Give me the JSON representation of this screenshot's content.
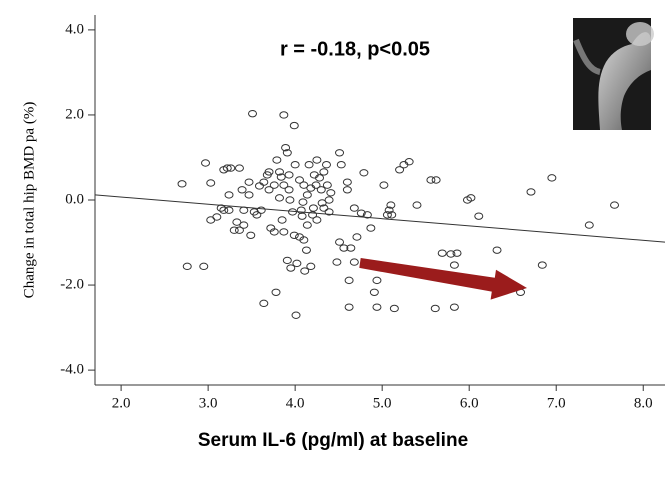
{
  "chart_data": {
    "type": "scatter",
    "annotation": "r = -0.18, p<0.05",
    "x_label": "Serum IL-6 (pg/ml) at baseline",
    "y_label": "Change in total hip BMD pa (%)",
    "xlim": [
      1.7,
      8.25
    ],
    "ylim": [
      -4.35,
      4.35
    ],
    "xticks": [
      {
        "value": 2,
        "label": "2.0"
      },
      {
        "value": 3,
        "label": "3.0"
      },
      {
        "value": 4,
        "label": "4.0"
      },
      {
        "value": 5,
        "label": "5.0"
      },
      {
        "value": 6,
        "label": "6.0"
      },
      {
        "value": 7,
        "label": "7.0"
      },
      {
        "value": 8,
        "label": "8.0"
      }
    ],
    "yticks": [
      {
        "value": 4,
        "label": "4.0"
      },
      {
        "value": 2,
        "label": "2.0"
      },
      {
        "value": 0,
        "label": "0.0"
      },
      {
        "value": -2,
        "label": "-2.0"
      },
      {
        "value": -4,
        "label": "-4.0"
      }
    ],
    "color": "#333333",
    "x": [
      2.7,
      2.76,
      2.95,
      2.97,
      3.03,
      3.03,
      3.1,
      3.15,
      3.18,
      3.18,
      3.22,
      3.24,
      3.24,
      3.26,
      3.3,
      3.33,
      3.36,
      3.36,
      3.39,
      3.41,
      3.41,
      3.47,
      3.47,
      3.49,
      3.51,
      3.53,
      3.56,
      3.59,
      3.61,
      3.64,
      3.64,
      3.68,
      3.7,
      3.7,
      3.72,
      3.76,
      3.76,
      3.78,
      3.79,
      3.82,
      3.82,
      3.84,
      3.85,
      3.87,
      3.87,
      3.87,
      3.89,
      3.91,
      3.91,
      3.93,
      3.93,
      3.94,
      3.95,
      3.97,
      3.99,
      3.99,
      4.0,
      4.01,
      4.02,
      4.05,
      4.05,
      4.07,
      4.08,
      4.09,
      4.1,
      4.1,
      4.11,
      4.13,
      4.14,
      4.14,
      4.16,
      4.18,
      4.18,
      4.2,
      4.21,
      4.22,
      4.24,
      4.25,
      4.25,
      4.28,
      4.3,
      4.31,
      4.33,
      4.33,
      4.36,
      4.37,
      4.39,
      4.39,
      4.41,
      4.48,
      4.51,
      4.51,
      4.53,
      4.56,
      4.6,
      4.6,
      4.62,
      4.62,
      4.64,
      4.68,
      4.68,
      4.71,
      4.76,
      4.79,
      4.83,
      4.87,
      4.91,
      4.94,
      4.94,
      5.02,
      5.06,
      5.08,
      5.1,
      5.11,
      5.14,
      5.2,
      5.25,
      5.31,
      5.4,
      5.56,
      5.61,
      5.62,
      5.69,
      5.79,
      5.83,
      5.86,
      5.83,
      5.98,
      6.02,
      6.11,
      6.32,
      6.59,
      6.71,
      6.84,
      6.95,
      7.38,
      7.67
    ],
    "values": [
      0.38,
      -1.56,
      -1.56,
      0.87,
      0.4,
      -0.47,
      -0.4,
      -0.19,
      -0.24,
      0.71,
      0.75,
      -0.24,
      0.12,
      0.75,
      -0.71,
      -0.52,
      0.75,
      -0.71,
      0.24,
      -0.24,
      -0.59,
      0.12,
      0.42,
      -0.83,
      2.03,
      -0.28,
      -0.35,
      0.33,
      -0.24,
      -2.43,
      0.42,
      0.59,
      0.24,
      0.66,
      -0.66,
      -0.75,
      0.35,
      -2.17,
      0.94,
      0.66,
      0.05,
      0.54,
      -0.47,
      0.35,
      -0.75,
      2.0,
      1.23,
      1.11,
      -1.42,
      0.59,
      0.24,
      0,
      -1.6,
      -0.28,
      1.75,
      -0.83,
      0.83,
      -2.71,
      -1.49,
      0.47,
      -0.87,
      -0.24,
      -0.38,
      -0.05,
      0.35,
      -0.94,
      -1.67,
      -1.18,
      -0.59,
      0.12,
      0.83,
      0.28,
      -1.56,
      -0.35,
      -0.19,
      0.59,
      0.35,
      0.94,
      -0.47,
      0.52,
      0.24,
      -0.07,
      0.66,
      -0.19,
      0.83,
      0.35,
      0,
      -0.28,
      0.17,
      -1.46,
      1.11,
      -0.99,
      0.83,
      -1.13,
      0.42,
      0.24,
      -1.89,
      -2.52,
      -1.13,
      -1.46,
      -0.19,
      -0.87,
      -0.31,
      0.64,
      -0.35,
      -0.66,
      -2.17,
      -1.89,
      -2.52,
      0.35,
      -0.35,
      -0.24,
      -0.12,
      -0.35,
      -2.55,
      0.71,
      0.83,
      0.9,
      -0.12,
      0.47,
      -2.55,
      0.47,
      -1.25,
      -1.27,
      -1.53,
      -1.25,
      -2.52,
      0,
      0.05,
      -0.38,
      -1.18,
      -2.17,
      0.19,
      -1.53,
      0.52,
      -0.59,
      -0.12
    ],
    "trend_line": {
      "x": [
        1.7,
        8.25
      ],
      "values": [
        0.12,
        -0.99
      ]
    }
  }
}
